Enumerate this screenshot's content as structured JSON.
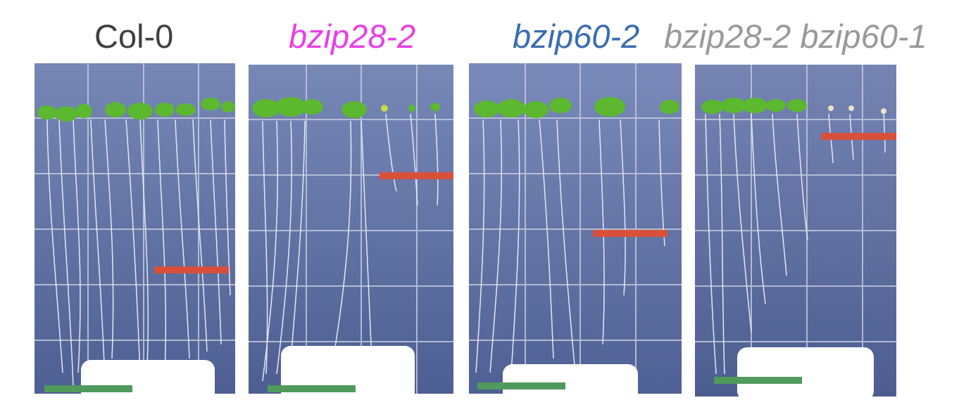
{
  "labels": [
    {
      "text": "Col-0",
      "italic": false,
      "color": "#404040"
    },
    {
      "text": "bzip28-2",
      "italic": true,
      "color": "#e83ee8"
    },
    {
      "text": "bzip60-2",
      "italic": true,
      "color": "#3a6db0"
    },
    {
      "text": "bzip28-2 bzip60-1",
      "italic": true,
      "color": "#999999"
    }
  ],
  "colors": {
    "plate_bg": "#5f72a4",
    "grid": "#c8cfe0",
    "root": "#e4e8f2",
    "leaf": "#5cb82e",
    "label_card": "#ffffff",
    "red_marker": "#d9503a",
    "green_marker": "#4f9a5c"
  }
}
